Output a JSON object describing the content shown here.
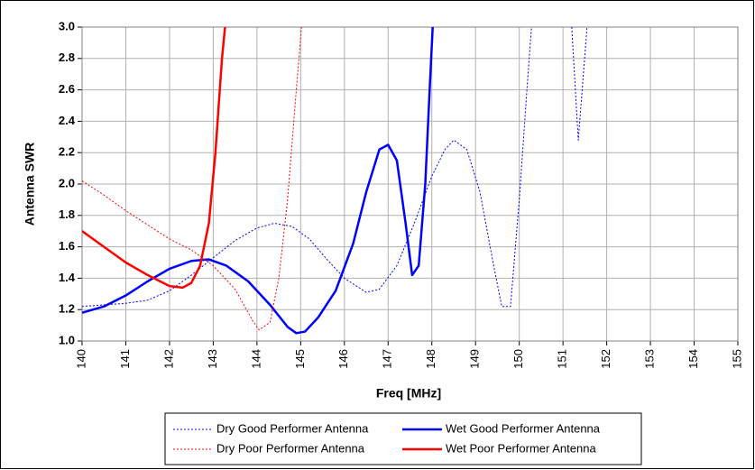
{
  "chart_data": {
    "type": "line",
    "x_label": "Freq [MHz]",
    "y_label": "Antenna SWR",
    "xlim": [
      140,
      155
    ],
    "xticks": [
      140,
      141,
      142,
      143,
      144,
      145,
      146,
      147,
      148,
      149,
      150,
      151,
      152,
      153,
      154,
      155
    ],
    "ylim": [
      1.0,
      3.0
    ],
    "yticks": [
      {
        "value": 1.0,
        "label": "1.0"
      },
      {
        "value": 1.2,
        "label": "1.2"
      },
      {
        "value": 1.4,
        "label": "1.4"
      },
      {
        "value": 1.6,
        "label": "1.6"
      },
      {
        "value": 1.8,
        "label": "1.8"
      },
      {
        "value": 2.0,
        "label": "2.0"
      },
      {
        "value": 2.2,
        "label": "2.2"
      },
      {
        "value": 2.4,
        "label": "2.4"
      },
      {
        "value": 2.6,
        "label": "2.6"
      },
      {
        "value": 2.8,
        "label": "2.8"
      },
      {
        "value": 3.0,
        "label": "3.0"
      }
    ],
    "grid": true,
    "legend": "bottom",
    "series": [
      {
        "name": "Dry Good Performer Antenna",
        "color": "#0000ff",
        "line_style": "dotted",
        "line_width": 1,
        "x": [
          140,
          141,
          141.5,
          142,
          142.5,
          143,
          143.5,
          144,
          144.4,
          144.8,
          145.2,
          145.6,
          146,
          146.5,
          146.8,
          147.2,
          147.6,
          148,
          148.3,
          148.5,
          148.8,
          149.1,
          149.4,
          149.6,
          149.8,
          150,
          150.2,
          150.28,
          151,
          151.2,
          151.35,
          151.55
        ],
        "values": [
          1.22,
          1.24,
          1.26,
          1.32,
          1.42,
          1.53,
          1.64,
          1.72,
          1.75,
          1.73,
          1.65,
          1.52,
          1.4,
          1.31,
          1.33,
          1.48,
          1.75,
          2.05,
          2.22,
          2.28,
          2.22,
          1.95,
          1.5,
          1.22,
          1.22,
          1.9,
          2.7,
          3.0,
          null,
          3.0,
          2.28,
          3.0
        ]
      },
      {
        "name": "Wet Good Performer Antenna",
        "color": "#0000ff",
        "line_style": "solid",
        "line_width": 2.5,
        "x": [
          140,
          140.5,
          141,
          141.5,
          142,
          142.5,
          142.9,
          143.3,
          143.8,
          144.3,
          144.7,
          144.9,
          145.1,
          145.4,
          145.8,
          146.2,
          146.5,
          146.8,
          147,
          147.2,
          147.4,
          147.55,
          147.7,
          147.85,
          147.95,
          148.02
        ],
        "values": [
          1.18,
          1.22,
          1.29,
          1.38,
          1.46,
          1.51,
          1.52,
          1.48,
          1.38,
          1.23,
          1.09,
          1.05,
          1.06,
          1.15,
          1.32,
          1.62,
          1.95,
          2.22,
          2.25,
          2.15,
          1.75,
          1.42,
          1.48,
          2.0,
          2.6,
          3.0
        ]
      },
      {
        "name": "Dry Poor Performer Antenna",
        "color": "#ff0000",
        "line_style": "dotted",
        "line_width": 1,
        "x": [
          140,
          140.5,
          141,
          141.5,
          142,
          142.5,
          143,
          143.5,
          143.9,
          144.05,
          144.3,
          144.5,
          144.7,
          144.9,
          145.02
        ],
        "values": [
          2.02,
          1.93,
          1.83,
          1.74,
          1.65,
          1.58,
          1.48,
          1.33,
          1.13,
          1.07,
          1.12,
          1.4,
          1.9,
          2.6,
          3.0
        ]
      },
      {
        "name": "Wet Poor Performer Antenna",
        "color": "#ff0000",
        "line_style": "solid",
        "line_width": 2.5,
        "x": [
          140,
          140.5,
          141,
          141.5,
          142,
          142.3,
          142.5,
          142.7,
          142.9,
          143.05,
          143.2,
          143.27
        ],
        "values": [
          1.7,
          1.6,
          1.5,
          1.42,
          1.35,
          1.34,
          1.37,
          1.48,
          1.75,
          2.2,
          2.8,
          3.0
        ]
      }
    ]
  }
}
